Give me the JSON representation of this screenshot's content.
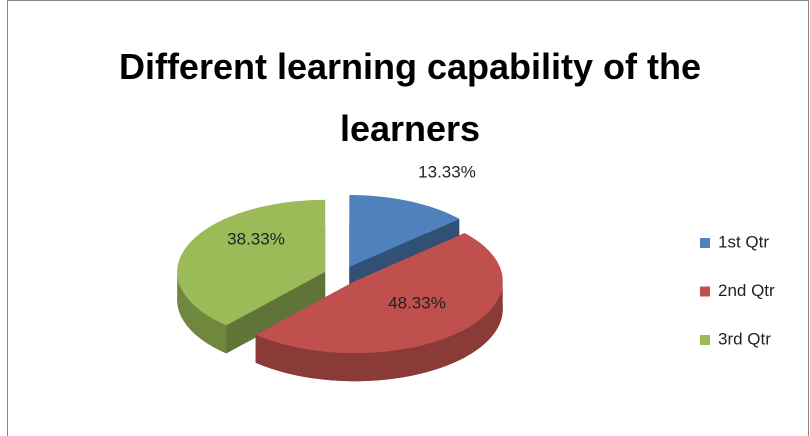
{
  "chart_data": {
    "type": "pie",
    "title": "Different learning capability of the learners",
    "categories": [
      "1st Qtr",
      "2nd Qtr",
      "3rd Qtr"
    ],
    "values": [
      13.33,
      48.33,
      38.33
    ],
    "value_labels": [
      "13.33%",
      "48.33%",
      "38.33%"
    ],
    "colors": [
      "#4f81bd",
      "#c0504d",
      "#9bbb59"
    ],
    "legend": "right"
  }
}
